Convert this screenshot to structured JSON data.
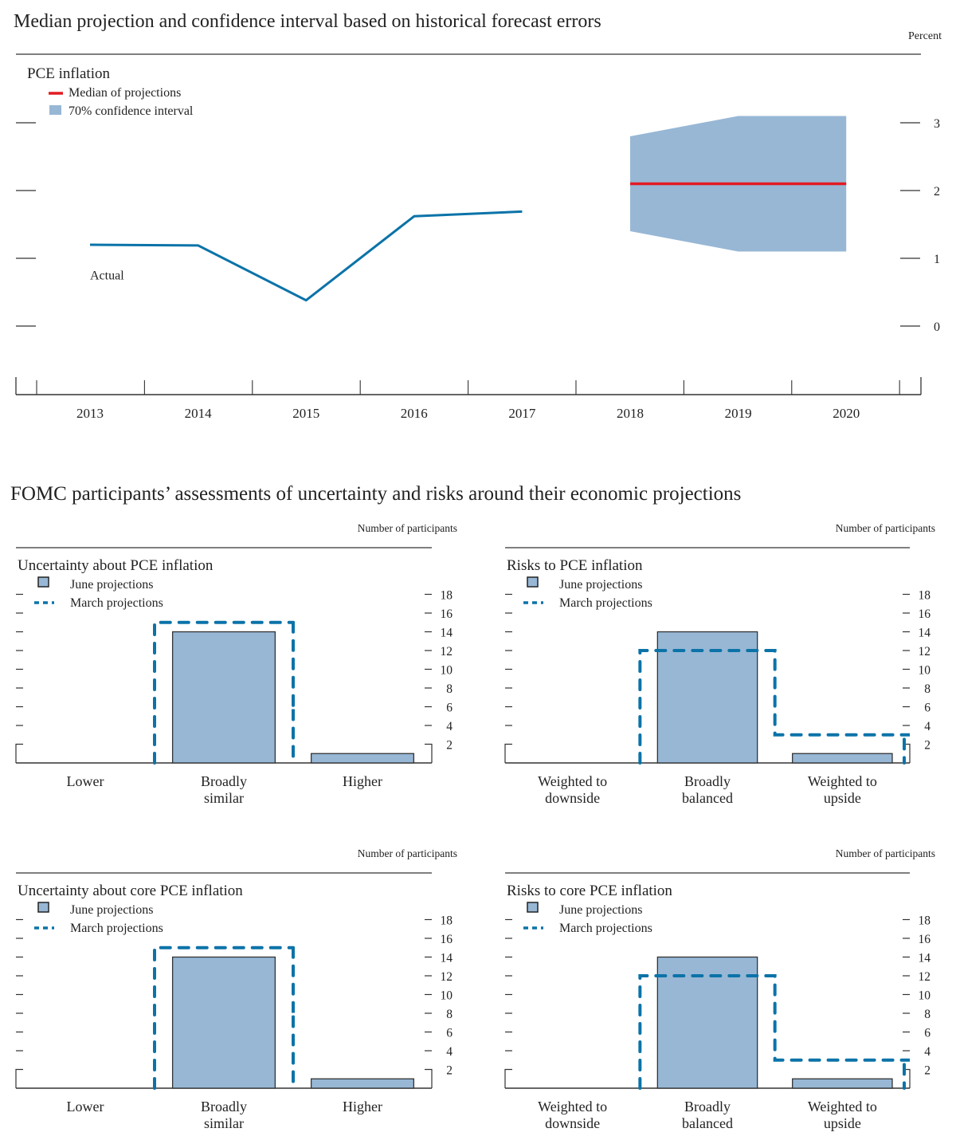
{
  "page": {
    "title_top": "Median projection and confidence interval based on historical forecast errors",
    "title_bottom": "FOMC participants’ assessments of uncertainty and risks around their economic projections"
  },
  "colors": {
    "actual_line": "#0b73a8",
    "median_line": "#e31b23",
    "ci_fill": "#97b7d5",
    "june_bar_fill": "#97b7d5",
    "june_bar_stroke": "#333333",
    "march_dash": "#0b73a8",
    "axis": "#333333"
  },
  "chart_data": [
    {
      "type": "line",
      "title": "PCE inflation",
      "unit_label": "Percent",
      "x": [
        2013,
        2014,
        2015,
        2016,
        2017,
        2018,
        2019,
        2020
      ],
      "x_tick_labels": [
        "2013",
        "2014",
        "2015",
        "2016",
        "2017",
        "2018",
        "2019",
        "2020"
      ],
      "ylim": [
        -0.75,
        3.6
      ],
      "y_ticks": [
        0,
        1,
        2,
        3
      ],
      "y_tick_labels": [
        "0",
        "1",
        "2",
        "3"
      ],
      "legend": [
        {
          "name": "Median of projections",
          "kind": "line"
        },
        {
          "name": "70% confidence interval",
          "kind": "area"
        }
      ],
      "annotations": [
        {
          "text": "Actual",
          "x": 2013,
          "y": 0.75
        }
      ],
      "series": [
        {
          "name": "Actual",
          "x": [
            2013,
            2014,
            2015,
            2016,
            2017
          ],
          "values": [
            1.2,
            1.19,
            0.38,
            1.62,
            1.69
          ]
        },
        {
          "name": "Median of projections",
          "x": [
            2018,
            2019,
            2020
          ],
          "values": [
            2.1,
            2.1,
            2.1
          ]
        },
        {
          "name": "70% confidence interval",
          "x": [
            2018,
            2019,
            2020
          ],
          "lower": [
            1.4,
            1.1,
            1.1
          ],
          "upper": [
            2.8,
            3.1,
            3.1
          ]
        }
      ]
    },
    {
      "type": "bar",
      "title": "Uncertainty about PCE inflation",
      "unit_label": "Number of participants",
      "categories": [
        "Lower",
        "Broadly similar",
        "Higher"
      ],
      "category_lines": [
        [
          "Lower"
        ],
        [
          "Broadly",
          "similar"
        ],
        [
          "Higher"
        ]
      ],
      "ylim": [
        0,
        18
      ],
      "y_ticks": [
        2,
        4,
        6,
        8,
        10,
        12,
        14,
        16,
        18
      ],
      "y_tick_labels": [
        "2",
        "4",
        "6",
        "8",
        "10",
        "12",
        "14",
        "16",
        "18"
      ],
      "legend": [
        {
          "name": "June projections",
          "kind": "bar"
        },
        {
          "name": "March projections",
          "kind": "dashed"
        }
      ],
      "series": [
        {
          "name": "June projections",
          "values": [
            0,
            14,
            1
          ]
        },
        {
          "name": "March projections",
          "values": [
            0,
            15,
            0
          ]
        }
      ]
    },
    {
      "type": "bar",
      "title": "Risks to PCE inflation",
      "unit_label": "Number of participants",
      "categories": [
        "Weighted to downside",
        "Broadly balanced",
        "Weighted to upside"
      ],
      "category_lines": [
        [
          "Weighted to",
          "downside"
        ],
        [
          "Broadly",
          "balanced"
        ],
        [
          "Weighted to",
          "upside"
        ]
      ],
      "ylim": [
        0,
        18
      ],
      "y_ticks": [
        2,
        4,
        6,
        8,
        10,
        12,
        14,
        16,
        18
      ],
      "y_tick_labels": [
        "2",
        "4",
        "6",
        "8",
        "10",
        "12",
        "14",
        "16",
        "18"
      ],
      "legend": [
        {
          "name": "June projections",
          "kind": "bar"
        },
        {
          "name": "March projections",
          "kind": "dashed"
        }
      ],
      "series": [
        {
          "name": "June projections",
          "values": [
            0,
            14,
            1
          ]
        },
        {
          "name": "March projections",
          "values": [
            0,
            12,
            3
          ]
        }
      ]
    },
    {
      "type": "bar",
      "title": "Uncertainty about core PCE inflation",
      "unit_label": "Number of participants",
      "categories": [
        "Lower",
        "Broadly similar",
        "Higher"
      ],
      "category_lines": [
        [
          "Lower"
        ],
        [
          "Broadly",
          "similar"
        ],
        [
          "Higher"
        ]
      ],
      "ylim": [
        0,
        18
      ],
      "y_ticks": [
        2,
        4,
        6,
        8,
        10,
        12,
        14,
        16,
        18
      ],
      "y_tick_labels": [
        "2",
        "4",
        "6",
        "8",
        "10",
        "12",
        "14",
        "16",
        "18"
      ],
      "legend": [
        {
          "name": "June projections",
          "kind": "bar"
        },
        {
          "name": "March projections",
          "kind": "dashed"
        }
      ],
      "series": [
        {
          "name": "June projections",
          "values": [
            0,
            14,
            1
          ]
        },
        {
          "name": "March projections",
          "values": [
            0,
            15,
            0
          ]
        }
      ]
    },
    {
      "type": "bar",
      "title": "Risks to core PCE inflation",
      "unit_label": "Number of participants",
      "categories": [
        "Weighted to downside",
        "Broadly balanced",
        "Weighted to upside"
      ],
      "category_lines": [
        [
          "Weighted to",
          "downside"
        ],
        [
          "Broadly",
          "balanced"
        ],
        [
          "Weighted to",
          "upside"
        ]
      ],
      "ylim": [
        0,
        18
      ],
      "y_ticks": [
        2,
        4,
        6,
        8,
        10,
        12,
        14,
        16,
        18
      ],
      "y_tick_labels": [
        "2",
        "4",
        "6",
        "8",
        "10",
        "12",
        "14",
        "16",
        "18"
      ],
      "legend": [
        {
          "name": "June projections",
          "kind": "bar"
        },
        {
          "name": "March projections",
          "kind": "dashed"
        }
      ],
      "series": [
        {
          "name": "June projections",
          "values": [
            0,
            14,
            1
          ]
        },
        {
          "name": "March projections",
          "values": [
            0,
            12,
            3
          ]
        }
      ]
    }
  ]
}
